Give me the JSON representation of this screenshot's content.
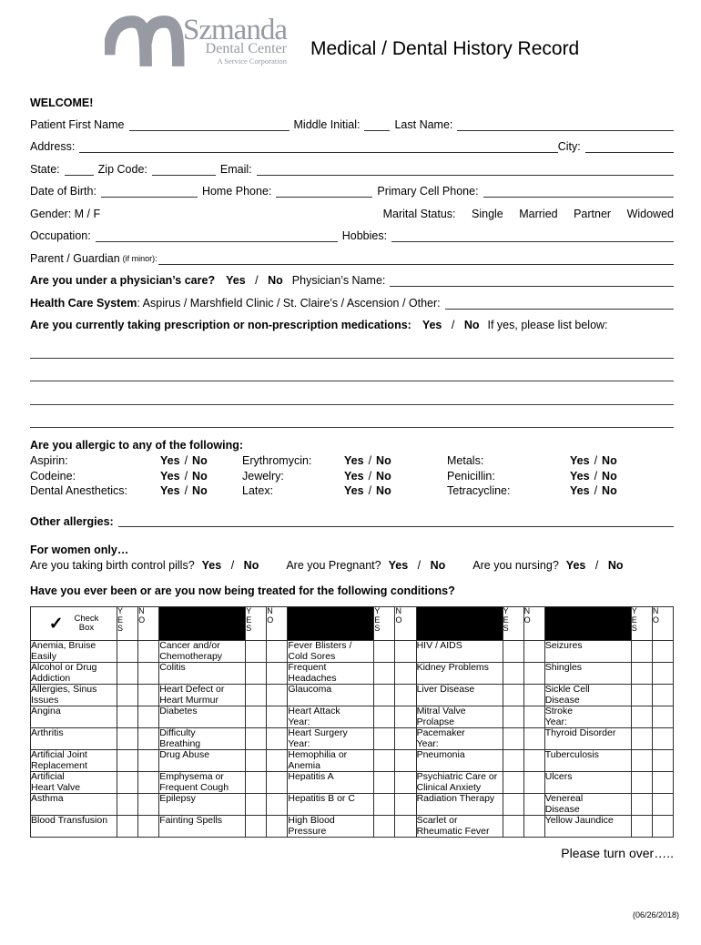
{
  "brand": {
    "name": "Szmanda",
    "line1": "Dental Center",
    "line2": "A Service Corporation",
    "color": "#979aa3"
  },
  "title": "Medical / Dental History Record",
  "welcome": "WELCOME!",
  "labels": {
    "yes": "Yes",
    "no": "No",
    "slash": "/"
  },
  "fields": {
    "first_name": "Patient First Name",
    "middle_initial": "Middle Initial:",
    "last_name": "Last Name:",
    "address": "Address:",
    "city": "City:",
    "state": "State:",
    "zip": "Zip Code:",
    "email": "Email:",
    "dob": "Date of Birth:",
    "home_phone": "Home Phone:",
    "cell_phone": "Primary Cell Phone:",
    "gender": "Gender: M / F",
    "marital": "Marital Status:",
    "marital_options": [
      "Single",
      "Married",
      "Partner",
      "Widowed"
    ],
    "occupation": "Occupation:",
    "hobbies": "Hobbies:",
    "parent": "Parent / Guardian",
    "parent_note": "(if minor):"
  },
  "physician": {
    "question": "Are you under a physician’s care?",
    "name_label": "Physician’s Name:"
  },
  "health_system": {
    "label": "Health Care System",
    "options": ":  Aspirus  /  Marshfield Clinic  / St. Claire’s  /  Ascension  / Other:"
  },
  "medications": {
    "question": "Are you currently taking prescription or non-prescription medications:",
    "suffix": "If yes, please list below:"
  },
  "allergies": {
    "heading": "Are you allergic to any of the following:",
    "labels": [
      "Aspirin:",
      "Erythromycin:",
      "Metals:",
      "Codeine:",
      "Jewelry:",
      "Penicillin:",
      "Dental Anesthetics:",
      "Latex:",
      "Tetracycline:"
    ],
    "other_label": "Other allergies:"
  },
  "women": {
    "heading": "For women only…",
    "q_birth_control": "Are you taking birth control pills?",
    "q_pregnant": "Are you Pregnant?",
    "q_nursing": "Are you nursing?"
  },
  "conditions": {
    "heading": "Have you ever been or are you now being treated for the following conditions?",
    "check_glyph": "✓",
    "check_label": "Check\nBox",
    "yes_col": "Y\nE\nS",
    "no_col": "N\nO",
    "rows": [
      [
        "Anemia, Bruise\nEasily",
        "Cancer and/or\nChemotherapy",
        "Fever Blisters /\nCold Sores",
        "HIV / AIDS",
        "Seizures"
      ],
      [
        "Alcohol or Drug\nAddiction",
        "Colitis",
        "Frequent\nHeadaches",
        "Kidney Problems",
        "Shingles"
      ],
      [
        "Allergies, Sinus\nIssues",
        "Heart Defect or\nHeart Murmur",
        "Glaucoma",
        "Liver Disease",
        "Sickle Cell\nDisease"
      ],
      [
        "Angina",
        "Diabetes",
        "Heart Attack\nYear:",
        "Mitral Valve\nProlapse",
        "Stroke\nYear:"
      ],
      [
        "Arthritis",
        "Difficulty\nBreathing",
        "Heart Surgery\nYear:",
        "Pacemaker\nYear:",
        "Thyroid Disorder"
      ],
      [
        "Artificial Joint\nReplacement",
        "Drug Abuse",
        "Hemophilia or\nAnemia",
        "Pneumonia",
        "Tuberculosis"
      ],
      [
        "Artificial\nHeart Valve",
        "Emphysema or\nFrequent Cough",
        "Hepatitis A",
        "Psychiatric Care or\nClinical Anxiety",
        "Ulcers"
      ],
      [
        "Asthma",
        "Epilepsy",
        "Hepatitis B or C",
        "Radiation Therapy",
        "Venereal\nDisease"
      ],
      [
        "Blood Transfusion",
        "Fainting Spells",
        "High Blood\nPressure",
        "Scarlet or\nRheumatic Fever",
        "Yellow Jaundice"
      ]
    ]
  },
  "footer": {
    "turn_over": "Please turn over…..",
    "revision_date": "(06/26/2018)"
  }
}
